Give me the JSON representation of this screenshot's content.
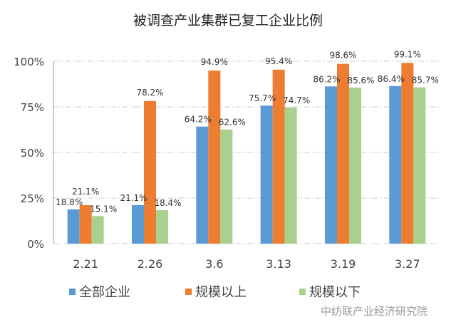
{
  "chart_data": {
    "type": "bar",
    "title": "被调查产业集群已复工企业比例",
    "categories": [
      "2.21",
      "2.26",
      "3.6",
      "3.13",
      "3.19",
      "3.27"
    ],
    "series": [
      {
        "name": "全部企业",
        "color": "#5b9bd5",
        "values": [
          18.8,
          21.1,
          64.2,
          75.7,
          86.2,
          86.4
        ],
        "labels": [
          "18.8%",
          "21.1%",
          "64.2%",
          "75.7%",
          "86.2%",
          "86.4%"
        ]
      },
      {
        "name": "规模以上",
        "color": "#ed7d31",
        "values": [
          21.1,
          78.2,
          94.9,
          95.4,
          98.6,
          99.1
        ],
        "labels": [
          "21.1%",
          "78.2%",
          "94.9%",
          "95.4%",
          "98.6%",
          "99.1%"
        ]
      },
      {
        "name": "规模以下",
        "color": "#a9d18e",
        "values": [
          15.1,
          18.4,
          62.6,
          74.7,
          85.6,
          85.7
        ],
        "labels": [
          "15.1%",
          "18.4%",
          "62.6%",
          "74.7%",
          "85.6%",
          "85.7%"
        ]
      }
    ],
    "yticks": [
      "0%",
      "25%",
      "50%",
      "75%",
      "100%"
    ],
    "ylim": [
      0,
      100
    ],
    "grid": true,
    "legend": "bottom"
  },
  "watermark": "中纺联产业经济研究院"
}
